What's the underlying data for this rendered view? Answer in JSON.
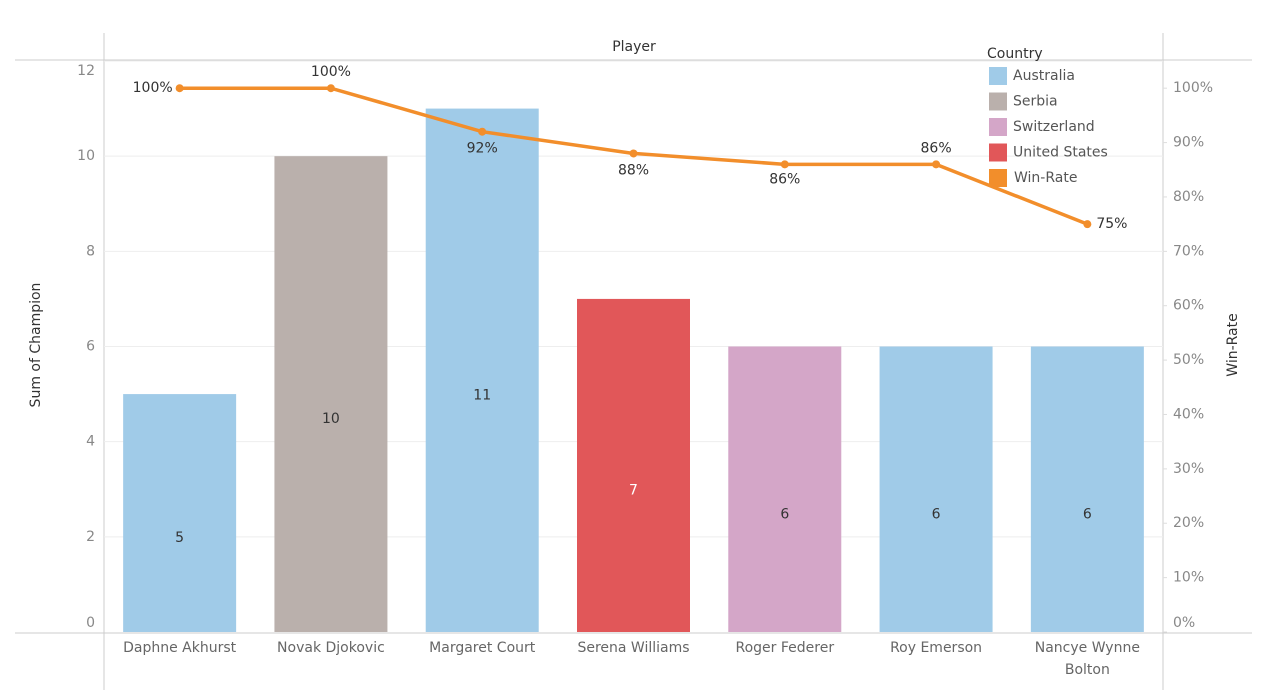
{
  "chart_data": {
    "type": "bar-line",
    "title": "Player",
    "ylabel": "Sum of Champion",
    "y2label": "Win-Rate",
    "categories": [
      "Daphne Akhurst",
      "Novak Djokovic",
      "Margaret Court",
      "Serena Williams",
      "Roger Federer",
      "Roy Emerson",
      "Nancye Wynne Bolton"
    ],
    "series": [
      {
        "type": "bar",
        "values": [
          5,
          10,
          11,
          7,
          6,
          6,
          6
        ],
        "country": [
          "Australia",
          "Serbia",
          "Australia",
          "United States",
          "Switzerland",
          "Australia",
          "Australia"
        ]
      },
      {
        "type": "line",
        "name": "Win-Rate",
        "color": "#f28e2b",
        "axis": "y2",
        "values": [
          100,
          100,
          92,
          88,
          86,
          86,
          75
        ],
        "value_labels": [
          "100%",
          "100%",
          "92%",
          "88%",
          "86%",
          "86%",
          "75%"
        ]
      }
    ],
    "ylim": [
      0,
      12
    ],
    "yticks": [
      0,
      2,
      4,
      6,
      8,
      10,
      12
    ],
    "y2lim": [
      0,
      105
    ],
    "y2ticks": [
      {
        "value": 0,
        "label": "0%"
      },
      {
        "value": 10,
        "label": "10%"
      },
      {
        "value": 20,
        "label": "20%"
      },
      {
        "value": 30,
        "label": "30%"
      },
      {
        "value": 40,
        "label": "40%"
      },
      {
        "value": 50,
        "label": "50%"
      },
      {
        "value": 60,
        "label": "60%"
      },
      {
        "value": 70,
        "label": "70%"
      },
      {
        "value": 80,
        "label": "80%"
      },
      {
        "value": 90,
        "label": "90%"
      },
      {
        "value": 100,
        "label": "100%"
      }
    ],
    "grid": true,
    "legend": {
      "title": "Country",
      "position": "top-right",
      "entries": [
        {
          "name": "Australia",
          "color": "#a0cbe8"
        },
        {
          "name": "Serbia",
          "color": "#bab0ac"
        },
        {
          "name": "Switzerland",
          "color": "#d4a6c8"
        },
        {
          "name": "United States",
          "color": "#e15759"
        }
      ]
    }
  }
}
